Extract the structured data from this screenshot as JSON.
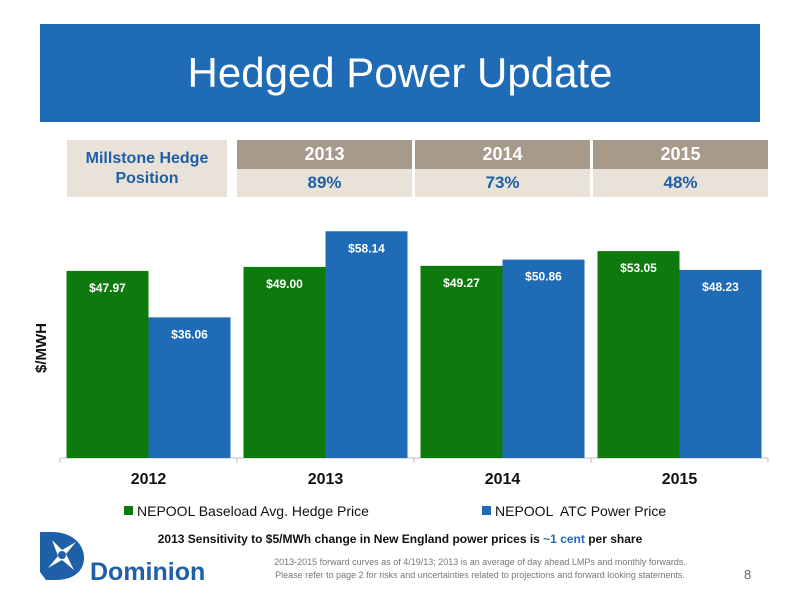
{
  "title": "Hedged Power Update",
  "hedge": {
    "label_line1": "Millstone Hedge",
    "label_line2": "Position",
    "years": [
      "2013",
      "2014",
      "2015"
    ],
    "positions": [
      "89%",
      "73%",
      "48%"
    ]
  },
  "chart_data": {
    "type": "bar",
    "categories": [
      "2012",
      "2013",
      "2014",
      "2015"
    ],
    "series": [
      {
        "name": "NEPOOL Baseload Avg. Hedge Price",
        "values": [
          47.97,
          49.0,
          49.27,
          53.05
        ],
        "labels": [
          "$47.97",
          "$49.00",
          "$49.27",
          "$53.05"
        ],
        "color": "#0e7a0e"
      },
      {
        "name": "NEPOOL  ATC Power Price",
        "values": [
          36.06,
          58.14,
          50.86,
          48.23
        ],
        "labels": [
          "$36.06",
          "$58.14",
          "$50.86",
          "$48.23"
        ],
        "color": "#1f6bb5"
      }
    ],
    "ylabel": "$/MWH",
    "ylim": [
      0,
      65
    ],
    "legend_position": "bottom",
    "grid": false
  },
  "note": {
    "before": "2013 Sensitivity to $5/MWh change in New England power prices is ",
    "highlight": "~1 cent",
    "after": " per share"
  },
  "footnote": {
    "line1": "2013-2015 forward curves as of 4/19/13; 2013 is an average of day ahead LMPs and monthly forwards.",
    "line2": "Please refer to page 2 for risks and uncertainties related to projections and forward looking statements."
  },
  "page_number": "8",
  "logo_text": "Dominion",
  "colors": {
    "title_bg": "#1f6bb5",
    "year_bg": "#a89a8a",
    "tan_bg": "#e8e2d8",
    "green": "#0e7a0e",
    "blue": "#1f6bb5"
  }
}
